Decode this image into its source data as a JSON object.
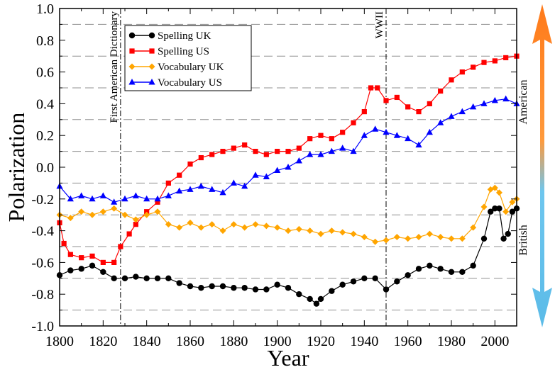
{
  "chart_data": {
    "type": "line",
    "xlabel": "Year",
    "ylabel": "Polarization",
    "xlim": [
      1800,
      2010
    ],
    "ylim": [
      -1.0,
      1.0
    ],
    "x_ticks": [
      "1800",
      "1820",
      "1840",
      "1860",
      "1880",
      "1900",
      "1920",
      "1940",
      "1960",
      "1980",
      "2000"
    ],
    "y_ticks": [
      "1.0",
      "0.8",
      "0.6",
      "0.4",
      "0.2",
      "0.0",
      "-0.2",
      "-0.4",
      "-0.6",
      "-0.8",
      "-1.0"
    ],
    "grid": "dashed horizontal at odd tenths",
    "legend_position": "top-left",
    "annotations": [
      {
        "text": "First American Dictionary",
        "x": 1828
      },
      {
        "text": "WWII",
        "x": 1950
      }
    ],
    "side_labels": {
      "top": "American",
      "bottom": "British"
    },
    "series": [
      {
        "name": "Spelling UK",
        "color": "#000000",
        "marker": "circle",
        "points": [
          [
            1800,
            -0.68
          ],
          [
            1805,
            -0.65
          ],
          [
            1810,
            -0.64
          ],
          [
            1815,
            -0.62
          ],
          [
            1820,
            -0.66
          ],
          [
            1825,
            -0.7
          ],
          [
            1830,
            -0.7
          ],
          [
            1835,
            -0.69
          ],
          [
            1840,
            -0.7
          ],
          [
            1845,
            -0.7
          ],
          [
            1850,
            -0.7
          ],
          [
            1855,
            -0.73
          ],
          [
            1860,
            -0.75
          ],
          [
            1865,
            -0.76
          ],
          [
            1870,
            -0.75
          ],
          [
            1875,
            -0.75
          ],
          [
            1880,
            -0.76
          ],
          [
            1885,
            -0.76
          ],
          [
            1890,
            -0.77
          ],
          [
            1895,
            -0.77
          ],
          [
            1900,
            -0.74
          ],
          [
            1905,
            -0.76
          ],
          [
            1910,
            -0.8
          ],
          [
            1915,
            -0.83
          ],
          [
            1918,
            -0.86
          ],
          [
            1920,
            -0.83
          ],
          [
            1925,
            -0.78
          ],
          [
            1930,
            -0.74
          ],
          [
            1935,
            -0.72
          ],
          [
            1940,
            -0.7
          ],
          [
            1945,
            -0.7
          ],
          [
            1950,
            -0.77
          ],
          [
            1955,
            -0.72
          ],
          [
            1960,
            -0.68
          ],
          [
            1965,
            -0.64
          ],
          [
            1970,
            -0.62
          ],
          [
            1975,
            -0.64
          ],
          [
            1980,
            -0.66
          ],
          [
            1985,
            -0.66
          ],
          [
            1990,
            -0.62
          ],
          [
            1995,
            -0.45
          ],
          [
            1998,
            -0.28
          ],
          [
            2000,
            -0.26
          ],
          [
            2002,
            -0.26
          ],
          [
            2004,
            -0.45
          ],
          [
            2006,
            -0.42
          ],
          [
            2008,
            -0.28
          ],
          [
            2010,
            -0.26
          ]
        ]
      },
      {
        "name": "Spelling US",
        "color": "#ff0000",
        "marker": "square",
        "points": [
          [
            1800,
            -0.35
          ],
          [
            1802,
            -0.48
          ],
          [
            1805,
            -0.55
          ],
          [
            1810,
            -0.57
          ],
          [
            1815,
            -0.56
          ],
          [
            1820,
            -0.6
          ],
          [
            1825,
            -0.6
          ],
          [
            1828,
            -0.5
          ],
          [
            1832,
            -0.42
          ],
          [
            1835,
            -0.36
          ],
          [
            1840,
            -0.28
          ],
          [
            1845,
            -0.22
          ],
          [
            1850,
            -0.1
          ],
          [
            1855,
            -0.05
          ],
          [
            1860,
            0.02
          ],
          [
            1865,
            0.06
          ],
          [
            1870,
            0.08
          ],
          [
            1875,
            0.1
          ],
          [
            1880,
            0.12
          ],
          [
            1885,
            0.14
          ],
          [
            1890,
            0.1
          ],
          [
            1895,
            0.08
          ],
          [
            1900,
            0.1
          ],
          [
            1905,
            0.1
          ],
          [
            1910,
            0.12
          ],
          [
            1915,
            0.18
          ],
          [
            1920,
            0.2
          ],
          [
            1925,
            0.18
          ],
          [
            1930,
            0.22
          ],
          [
            1935,
            0.28
          ],
          [
            1940,
            0.35
          ],
          [
            1943,
            0.5
          ],
          [
            1946,
            0.5
          ],
          [
            1950,
            0.42
          ],
          [
            1955,
            0.44
          ],
          [
            1960,
            0.38
          ],
          [
            1965,
            0.35
          ],
          [
            1970,
            0.4
          ],
          [
            1975,
            0.48
          ],
          [
            1980,
            0.55
          ],
          [
            1985,
            0.6
          ],
          [
            1990,
            0.63
          ],
          [
            1995,
            0.66
          ],
          [
            2000,
            0.67
          ],
          [
            2005,
            0.69
          ],
          [
            2010,
            0.7
          ]
        ]
      },
      {
        "name": "Vocabulary UK",
        "color": "#ffa500",
        "marker": "diamond",
        "points": [
          [
            1800,
            -0.3
          ],
          [
            1805,
            -0.32
          ],
          [
            1810,
            -0.28
          ],
          [
            1815,
            -0.3
          ],
          [
            1820,
            -0.28
          ],
          [
            1825,
            -0.26
          ],
          [
            1830,
            -0.3
          ],
          [
            1835,
            -0.33
          ],
          [
            1840,
            -0.3
          ],
          [
            1845,
            -0.28
          ],
          [
            1850,
            -0.36
          ],
          [
            1855,
            -0.38
          ],
          [
            1860,
            -0.35
          ],
          [
            1865,
            -0.38
          ],
          [
            1870,
            -0.36
          ],
          [
            1875,
            -0.4
          ],
          [
            1880,
            -0.36
          ],
          [
            1885,
            -0.38
          ],
          [
            1890,
            -0.36
          ],
          [
            1895,
            -0.37
          ],
          [
            1900,
            -0.38
          ],
          [
            1905,
            -0.4
          ],
          [
            1910,
            -0.39
          ],
          [
            1915,
            -0.4
          ],
          [
            1920,
            -0.42
          ],
          [
            1925,
            -0.4
          ],
          [
            1930,
            -0.41
          ],
          [
            1935,
            -0.42
          ],
          [
            1940,
            -0.44
          ],
          [
            1945,
            -0.47
          ],
          [
            1950,
            -0.46
          ],
          [
            1955,
            -0.44
          ],
          [
            1960,
            -0.45
          ],
          [
            1965,
            -0.44
          ],
          [
            1970,
            -0.42
          ],
          [
            1975,
            -0.44
          ],
          [
            1980,
            -0.45
          ],
          [
            1985,
            -0.45
          ],
          [
            1990,
            -0.38
          ],
          [
            1995,
            -0.25
          ],
          [
            1998,
            -0.14
          ],
          [
            2000,
            -0.13
          ],
          [
            2002,
            -0.16
          ],
          [
            2005,
            -0.28
          ],
          [
            2008,
            -0.22
          ],
          [
            2010,
            -0.2
          ]
        ]
      },
      {
        "name": "Vocabulary US",
        "color": "#0000ff",
        "marker": "triangle",
        "points": [
          [
            1800,
            -0.12
          ],
          [
            1805,
            -0.2
          ],
          [
            1810,
            -0.18
          ],
          [
            1815,
            -0.2
          ],
          [
            1820,
            -0.18
          ],
          [
            1825,
            -0.22
          ],
          [
            1830,
            -0.2
          ],
          [
            1835,
            -0.18
          ],
          [
            1840,
            -0.2
          ],
          [
            1845,
            -0.2
          ],
          [
            1850,
            -0.18
          ],
          [
            1855,
            -0.15
          ],
          [
            1860,
            -0.14
          ],
          [
            1865,
            -0.12
          ],
          [
            1870,
            -0.14
          ],
          [
            1875,
            -0.16
          ],
          [
            1880,
            -0.1
          ],
          [
            1885,
            -0.12
          ],
          [
            1890,
            -0.05
          ],
          [
            1895,
            -0.06
          ],
          [
            1900,
            -0.02
          ],
          [
            1905,
            0.0
          ],
          [
            1910,
            0.04
          ],
          [
            1915,
            0.08
          ],
          [
            1920,
            0.08
          ],
          [
            1925,
            0.1
          ],
          [
            1930,
            0.12
          ],
          [
            1935,
            0.1
          ],
          [
            1940,
            0.2
          ],
          [
            1945,
            0.24
          ],
          [
            1950,
            0.22
          ],
          [
            1955,
            0.2
          ],
          [
            1960,
            0.18
          ],
          [
            1965,
            0.14
          ],
          [
            1970,
            0.22
          ],
          [
            1975,
            0.28
          ],
          [
            1980,
            0.32
          ],
          [
            1985,
            0.35
          ],
          [
            1990,
            0.38
          ],
          [
            1995,
            0.4
          ],
          [
            2000,
            0.42
          ],
          [
            2005,
            0.43
          ],
          [
            2010,
            0.4
          ]
        ]
      }
    ]
  }
}
